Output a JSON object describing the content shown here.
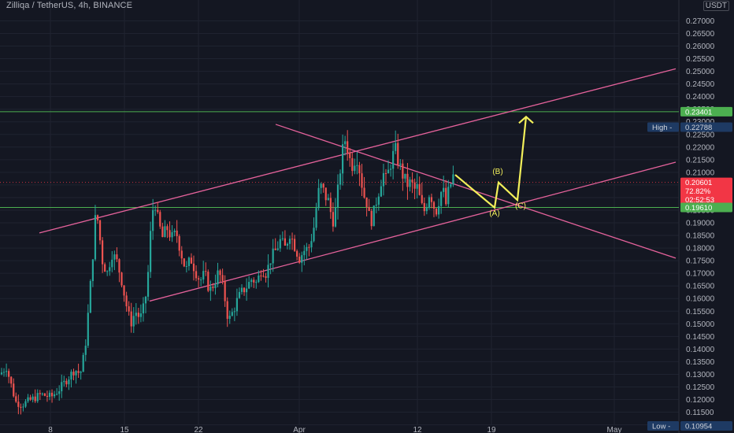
{
  "header": {
    "title": "Zilliqa / TetherUS, 4h, BINANCE",
    "currency": "USDT"
  },
  "colors": {
    "background": "#141722",
    "grid": "#1f2330",
    "up": "#26a69a",
    "down": "#ef5350",
    "channel": "#e5629b",
    "resistance": "#4caf50",
    "projection": "#f3f05a",
    "price_tag": "#f23645",
    "high_low_tag": "#1e3a63"
  },
  "chart_data": {
    "type": "candlestick",
    "title": "Zilliqa / TetherUS, 4h, BINANCE",
    "ylim": [
      0.108,
      0.277
    ],
    "y_ticks": [
      "0.27000",
      "0.26500",
      "0.26000",
      "0.25500",
      "0.25000",
      "0.24500",
      "0.24000",
      "0.23500",
      "0.23000",
      "0.22500",
      "0.22000",
      "0.21500",
      "0.21000",
      "0.20500",
      "0.20000",
      "0.19500",
      "0.19000",
      "0.18500",
      "0.18000",
      "0.17500",
      "0.17000",
      "0.16500",
      "0.16000",
      "0.15500",
      "0.15000",
      "0.14500",
      "0.14000",
      "0.13500",
      "0.13000",
      "0.12500",
      "0.12000",
      "0.11500",
      "0.11000"
    ],
    "x_ticks": [
      "8",
      "15",
      "22",
      "Apr",
      "12",
      "19",
      "May"
    ],
    "grid": true,
    "price_path": [
      [
        0,
        0.13
      ],
      [
        8,
        0.133
      ],
      [
        14,
        0.126
      ],
      [
        20,
        0.119
      ],
      [
        28,
        0.118
      ],
      [
        40,
        0.12
      ],
      [
        52,
        0.122
      ],
      [
        65,
        0.121
      ],
      [
        75,
        0.124
      ],
      [
        85,
        0.128
      ],
      [
        95,
        0.132
      ],
      [
        102,
        0.13
      ],
      [
        108,
        0.14
      ],
      [
        113,
        0.158
      ],
      [
        118,
        0.178
      ],
      [
        122,
        0.196
      ],
      [
        126,
        0.186
      ],
      [
        130,
        0.175
      ],
      [
        136,
        0.17
      ],
      [
        142,
        0.178
      ],
      [
        148,
        0.175
      ],
      [
        154,
        0.168
      ],
      [
        160,
        0.158
      ],
      [
        166,
        0.15
      ],
      [
        172,
        0.155
      ],
      [
        178,
        0.152
      ],
      [
        184,
        0.158
      ],
      [
        188,
        0.17
      ],
      [
        192,
        0.19
      ],
      [
        196,
        0.2
      ],
      [
        200,
        0.192
      ],
      [
        206,
        0.184
      ],
      [
        212,
        0.188
      ],
      [
        218,
        0.184
      ],
      [
        224,
        0.186
      ],
      [
        230,
        0.178
      ],
      [
        236,
        0.171
      ],
      [
        242,
        0.176
      ],
      [
        248,
        0.171
      ],
      [
        254,
        0.167
      ],
      [
        260,
        0.17
      ],
      [
        266,
        0.163
      ],
      [
        272,
        0.166
      ],
      [
        278,
        0.171
      ],
      [
        284,
        0.163
      ],
      [
        290,
        0.151
      ],
      [
        296,
        0.155
      ],
      [
        302,
        0.16
      ],
      [
        308,
        0.163
      ],
      [
        314,
        0.165
      ],
      [
        320,
        0.168
      ],
      [
        326,
        0.166
      ],
      [
        332,
        0.172
      ],
      [
        338,
        0.17
      ],
      [
        344,
        0.176
      ],
      [
        350,
        0.179
      ],
      [
        356,
        0.183
      ],
      [
        362,
        0.18
      ],
      [
        368,
        0.186
      ],
      [
        374,
        0.181
      ],
      [
        380,
        0.176
      ],
      [
        386,
        0.179
      ],
      [
        392,
        0.18
      ],
      [
        398,
        0.187
      ],
      [
        402,
        0.197
      ],
      [
        406,
        0.205
      ],
      [
        410,
        0.203
      ],
      [
        414,
        0.2
      ],
      [
        418,
        0.198
      ],
      [
        422,
        0.19
      ],
      [
        426,
        0.195
      ],
      [
        430,
        0.205
      ],
      [
        434,
        0.217
      ],
      [
        438,
        0.223
      ],
      [
        442,
        0.219
      ],
      [
        446,
        0.212
      ],
      [
        450,
        0.215
      ],
      [
        454,
        0.216
      ],
      [
        458,
        0.208
      ],
      [
        462,
        0.201
      ],
      [
        466,
        0.198
      ],
      [
        470,
        0.19
      ],
      [
        474,
        0.193
      ],
      [
        478,
        0.199
      ],
      [
        482,
        0.204
      ],
      [
        486,
        0.21
      ],
      [
        490,
        0.207
      ],
      [
        494,
        0.211
      ],
      [
        498,
        0.216
      ],
      [
        502,
        0.219
      ],
      [
        506,
        0.214
      ],
      [
        510,
        0.21
      ],
      [
        514,
        0.207
      ],
      [
        518,
        0.205
      ],
      [
        522,
        0.206
      ],
      [
        526,
        0.203
      ],
      [
        530,
        0.204
      ],
      [
        534,
        0.198
      ],
      [
        538,
        0.194
      ],
      [
        542,
        0.198
      ],
      [
        546,
        0.203
      ],
      [
        550,
        0.197
      ],
      [
        554,
        0.195
      ],
      [
        558,
        0.2
      ],
      [
        562,
        0.204
      ],
      [
        566,
        0.197
      ],
      [
        570,
        0.203
      ],
      [
        574,
        0.207
      ],
      [
        576,
        0.209
      ]
    ],
    "high": {
      "label": "High",
      "value": "0.22788",
      "y": 0.22788
    },
    "low": {
      "label": "Low",
      "value": "0.10954",
      "y": 0.10954
    },
    "current": {
      "price": "0.20601",
      "change": "72.82%",
      "countdown": "02:52:53",
      "y": 0.20601
    },
    "resistance": {
      "value": "0.23401",
      "y": 0.23401
    },
    "support": {
      "value": "0.19610",
      "y": 0.1961
    },
    "channel_lines": [
      {
        "name": "upper",
        "from": [
          50,
          0.186
        ],
        "to": [
          858,
          0.251
        ]
      },
      {
        "name": "lower",
        "from": [
          190,
          0.159
        ],
        "to": [
          858,
          0.214
        ]
      },
      {
        "name": "descending",
        "from": [
          350,
          0.229
        ],
        "to": [
          858,
          0.176
        ]
      }
    ],
    "projection_path": [
      [
        578,
        0.209
      ],
      [
        628,
        0.196
      ],
      [
        633,
        0.206
      ],
      [
        657,
        0.199
      ],
      [
        668,
        0.232
      ]
    ],
    "wave_labels": [
      {
        "text": "(A)",
        "x": 628,
        "y": 0.1928
      },
      {
        "text": "(B)",
        "x": 632,
        "y": 0.2093
      },
      {
        "text": "(C)",
        "x": 661,
        "y": 0.1957
      }
    ]
  }
}
